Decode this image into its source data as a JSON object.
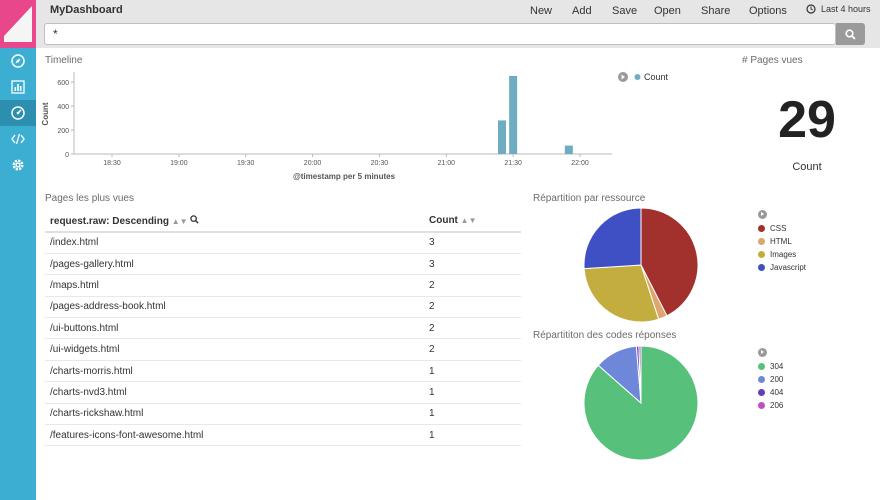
{
  "app": {
    "title": "MyDashboard"
  },
  "menu": {
    "new": "New",
    "add": "Add",
    "save": "Save",
    "open": "Open",
    "share": "Share",
    "options": "Options"
  },
  "timepicker": {
    "label": "Last 4 hours"
  },
  "search": {
    "value": "*"
  },
  "timeline": {
    "title": "Timeline",
    "legend_label": "Count",
    "colors": {
      "bar": "#6eadc1"
    }
  },
  "metric": {
    "title": "# Pages vues",
    "value": "29",
    "label": "Count"
  },
  "table": {
    "title": "Pages les plus vues",
    "columns": [
      "request.raw: Descending",
      "Count"
    ],
    "rows": [
      [
        "/index.html",
        "3"
      ],
      [
        "/pages-gallery.html",
        "3"
      ],
      [
        "/maps.html",
        "2"
      ],
      [
        "/pages-address-book.html",
        "2"
      ],
      [
        "/ui-buttons.html",
        "2"
      ],
      [
        "/ui-widgets.html",
        "2"
      ],
      [
        "/charts-morris.html",
        "1"
      ],
      [
        "/charts-nvd3.html",
        "1"
      ],
      [
        "/charts-rickshaw.html",
        "1"
      ],
      [
        "/features-icons-font-awesome.html",
        "1"
      ]
    ]
  },
  "chart_data": [
    {
      "type": "bar",
      "title": "Timeline",
      "xlabel": "@timestamp per 5 minutes",
      "ylabel": "Count",
      "x_ticks": [
        "18:30",
        "19:00",
        "19:30",
        "20:00",
        "20:30",
        "21:00",
        "21:30",
        "22:00"
      ],
      "y_ticks": [
        "0",
        "200",
        "400",
        "600"
      ],
      "ylim": [
        0,
        650
      ],
      "series": [
        {
          "name": "Count",
          "points": [
            {
              "x": "21:25",
              "y": 280
            },
            {
              "x": "21:30",
              "y": 650
            },
            {
              "x": "21:55",
              "y": 70
            }
          ]
        }
      ]
    },
    {
      "type": "pie",
      "title": "Répartition par ressource",
      "labels": [
        "CSS",
        "HTML",
        "Images",
        "Javascript"
      ],
      "values": [
        42.5,
        2.5,
        29,
        26
      ],
      "colors": [
        "#a2312d",
        "#dca66c",
        "#c4ad3f",
        "#3f4fc4"
      ]
    },
    {
      "type": "pie",
      "title": "Répartititon des codes réponses",
      "labels": [
        "304",
        "200",
        "404",
        "206"
      ],
      "values": [
        86.5,
        12.2,
        0.7,
        0.6
      ],
      "colors": [
        "#57c17b",
        "#6f87d8",
        "#663db8",
        "#bc52bc"
      ]
    }
  ]
}
